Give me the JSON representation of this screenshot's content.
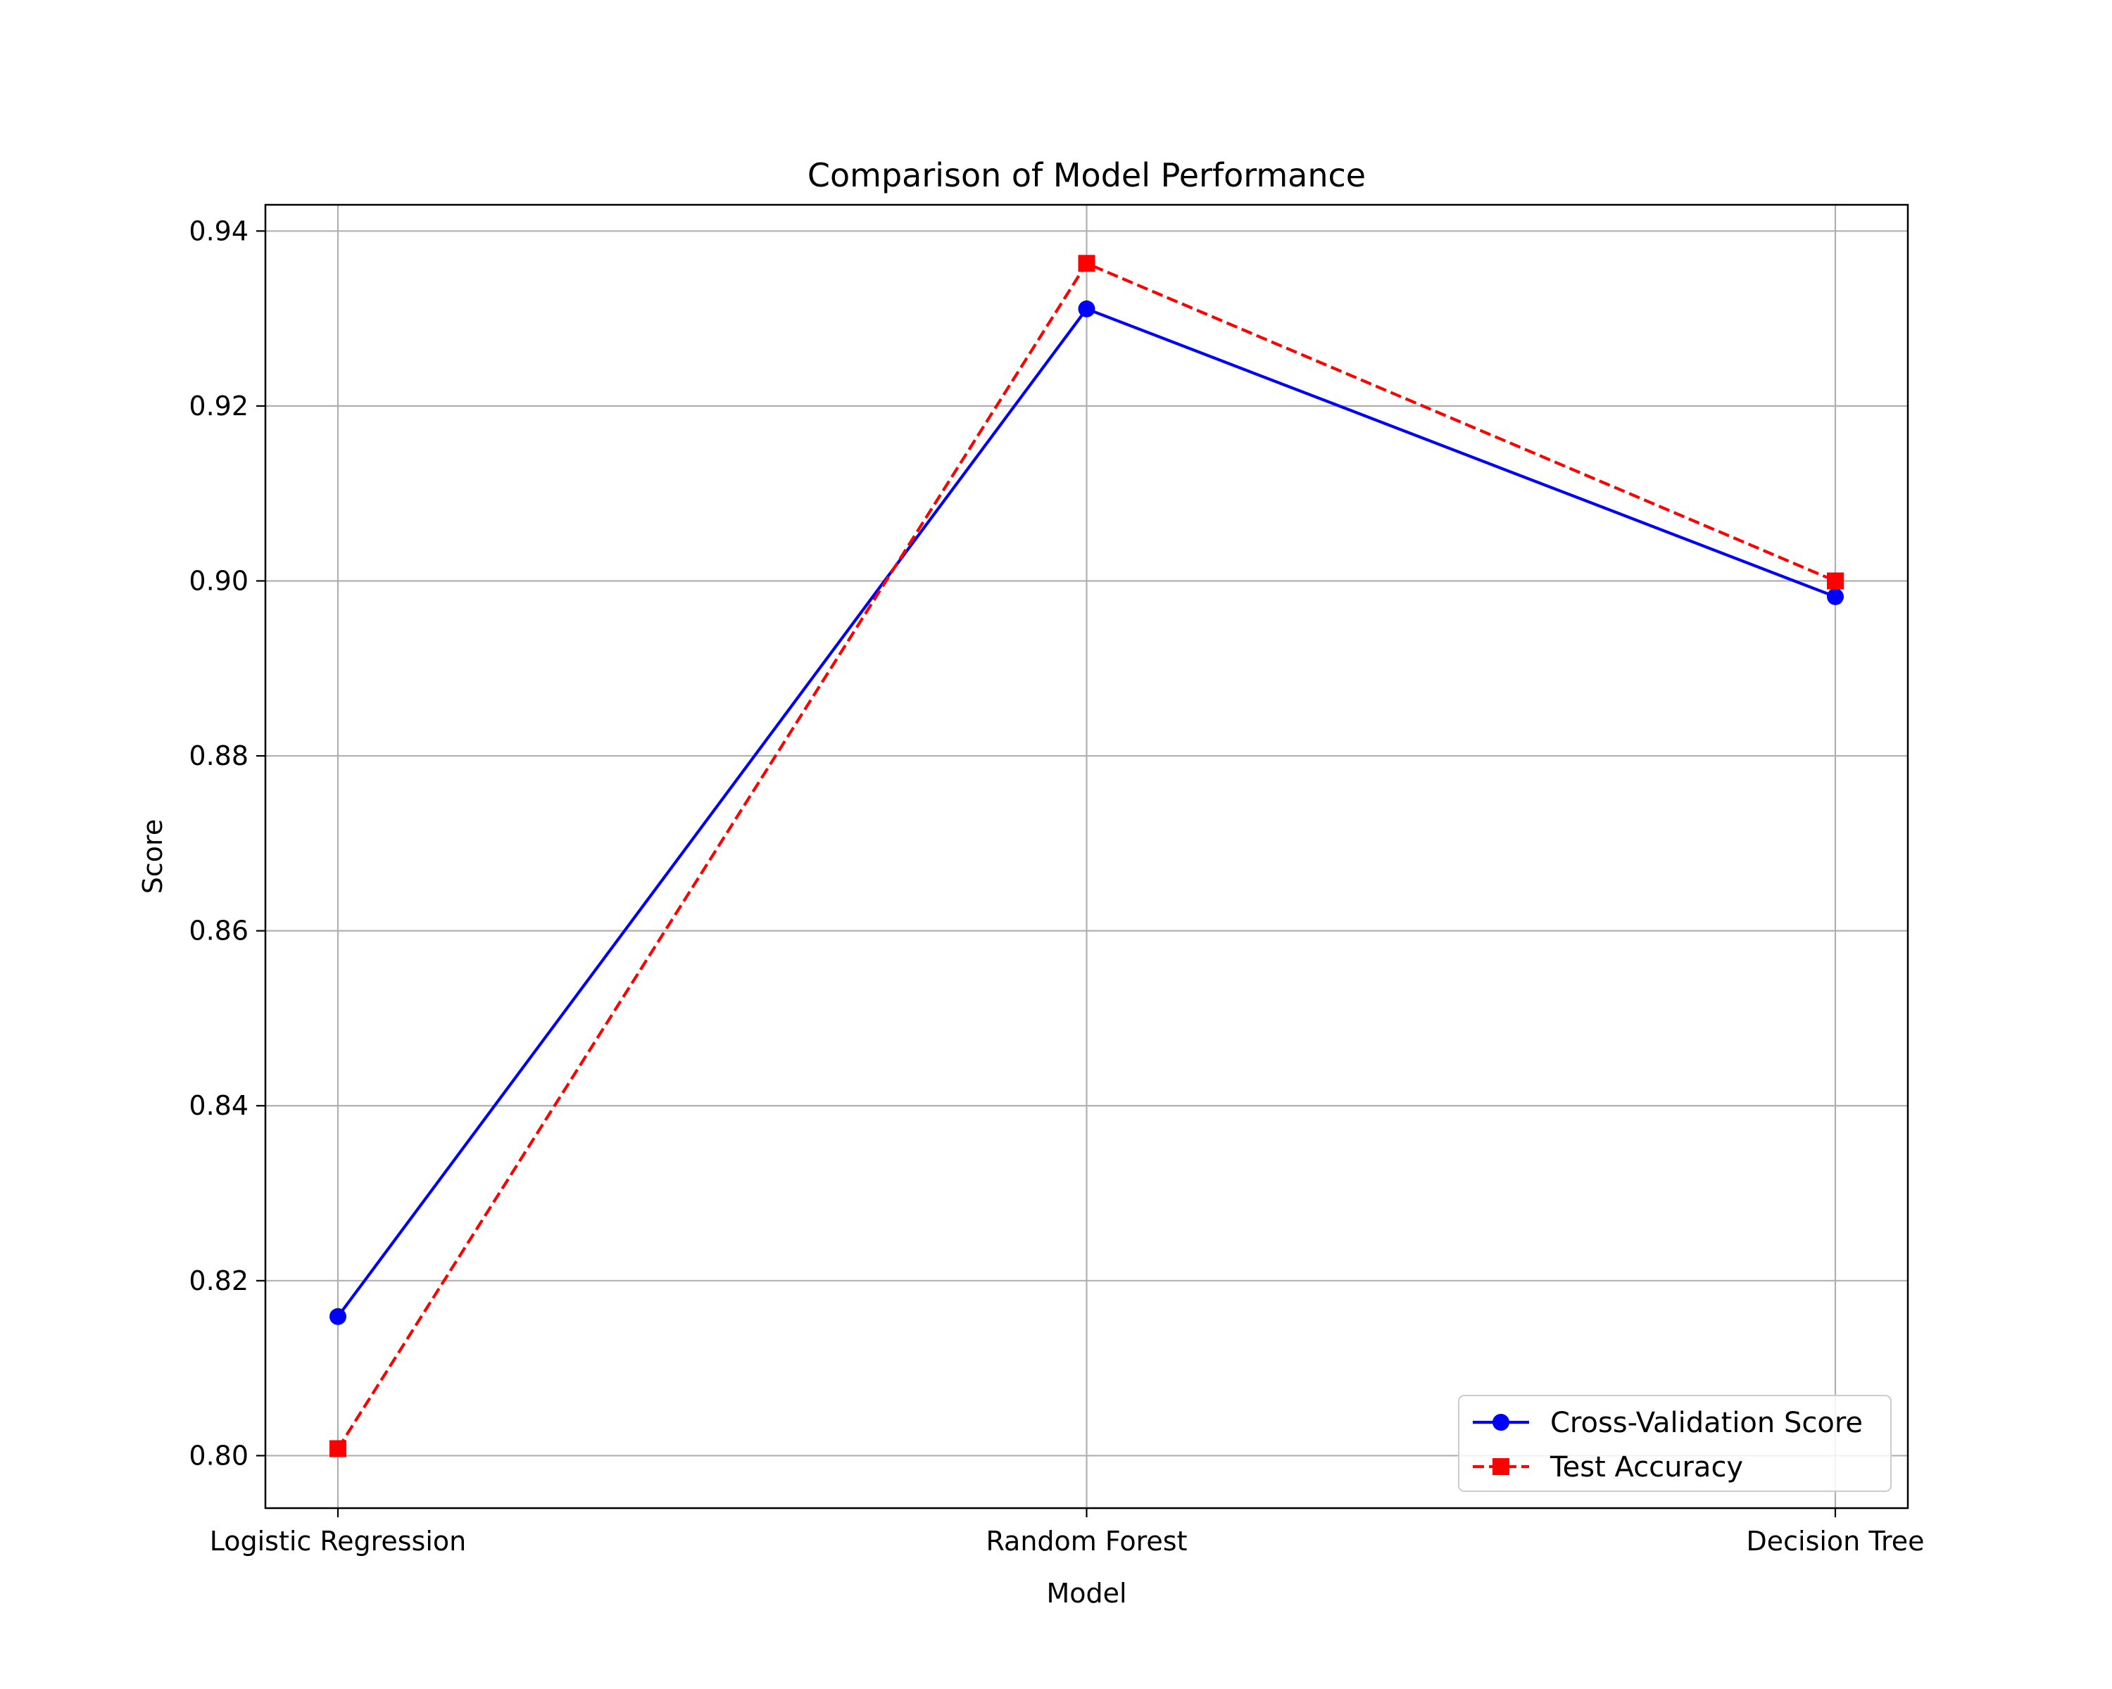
{
  "chart_data": {
    "type": "line",
    "title": "Comparison of Model Performance",
    "xlabel": "Model",
    "ylabel": "Score",
    "categories": [
      "Logistic Regression",
      "Random Forest",
      "Decision Tree"
    ],
    "ylim": [
      0.794,
      0.943
    ],
    "yticks": [
      0.8,
      0.82,
      0.84,
      0.86,
      0.88,
      0.9,
      0.92,
      0.94
    ],
    "ytick_labels": [
      "0.80",
      "0.82",
      "0.84",
      "0.86",
      "0.88",
      "0.90",
      "0.92",
      "0.94"
    ],
    "grid": true,
    "legend_position": "lower-right",
    "series": [
      {
        "name": "Cross-Validation Score",
        "values": [
          0.8159,
          0.9311,
          0.8982
        ],
        "color": "#0000ff",
        "marker": "circle",
        "linestyle": "solid"
      },
      {
        "name": "Test Accuracy",
        "values": [
          0.8008,
          0.9363,
          0.9
        ],
        "color": "#ff0000",
        "marker": "square",
        "linestyle": "dashed"
      }
    ]
  }
}
